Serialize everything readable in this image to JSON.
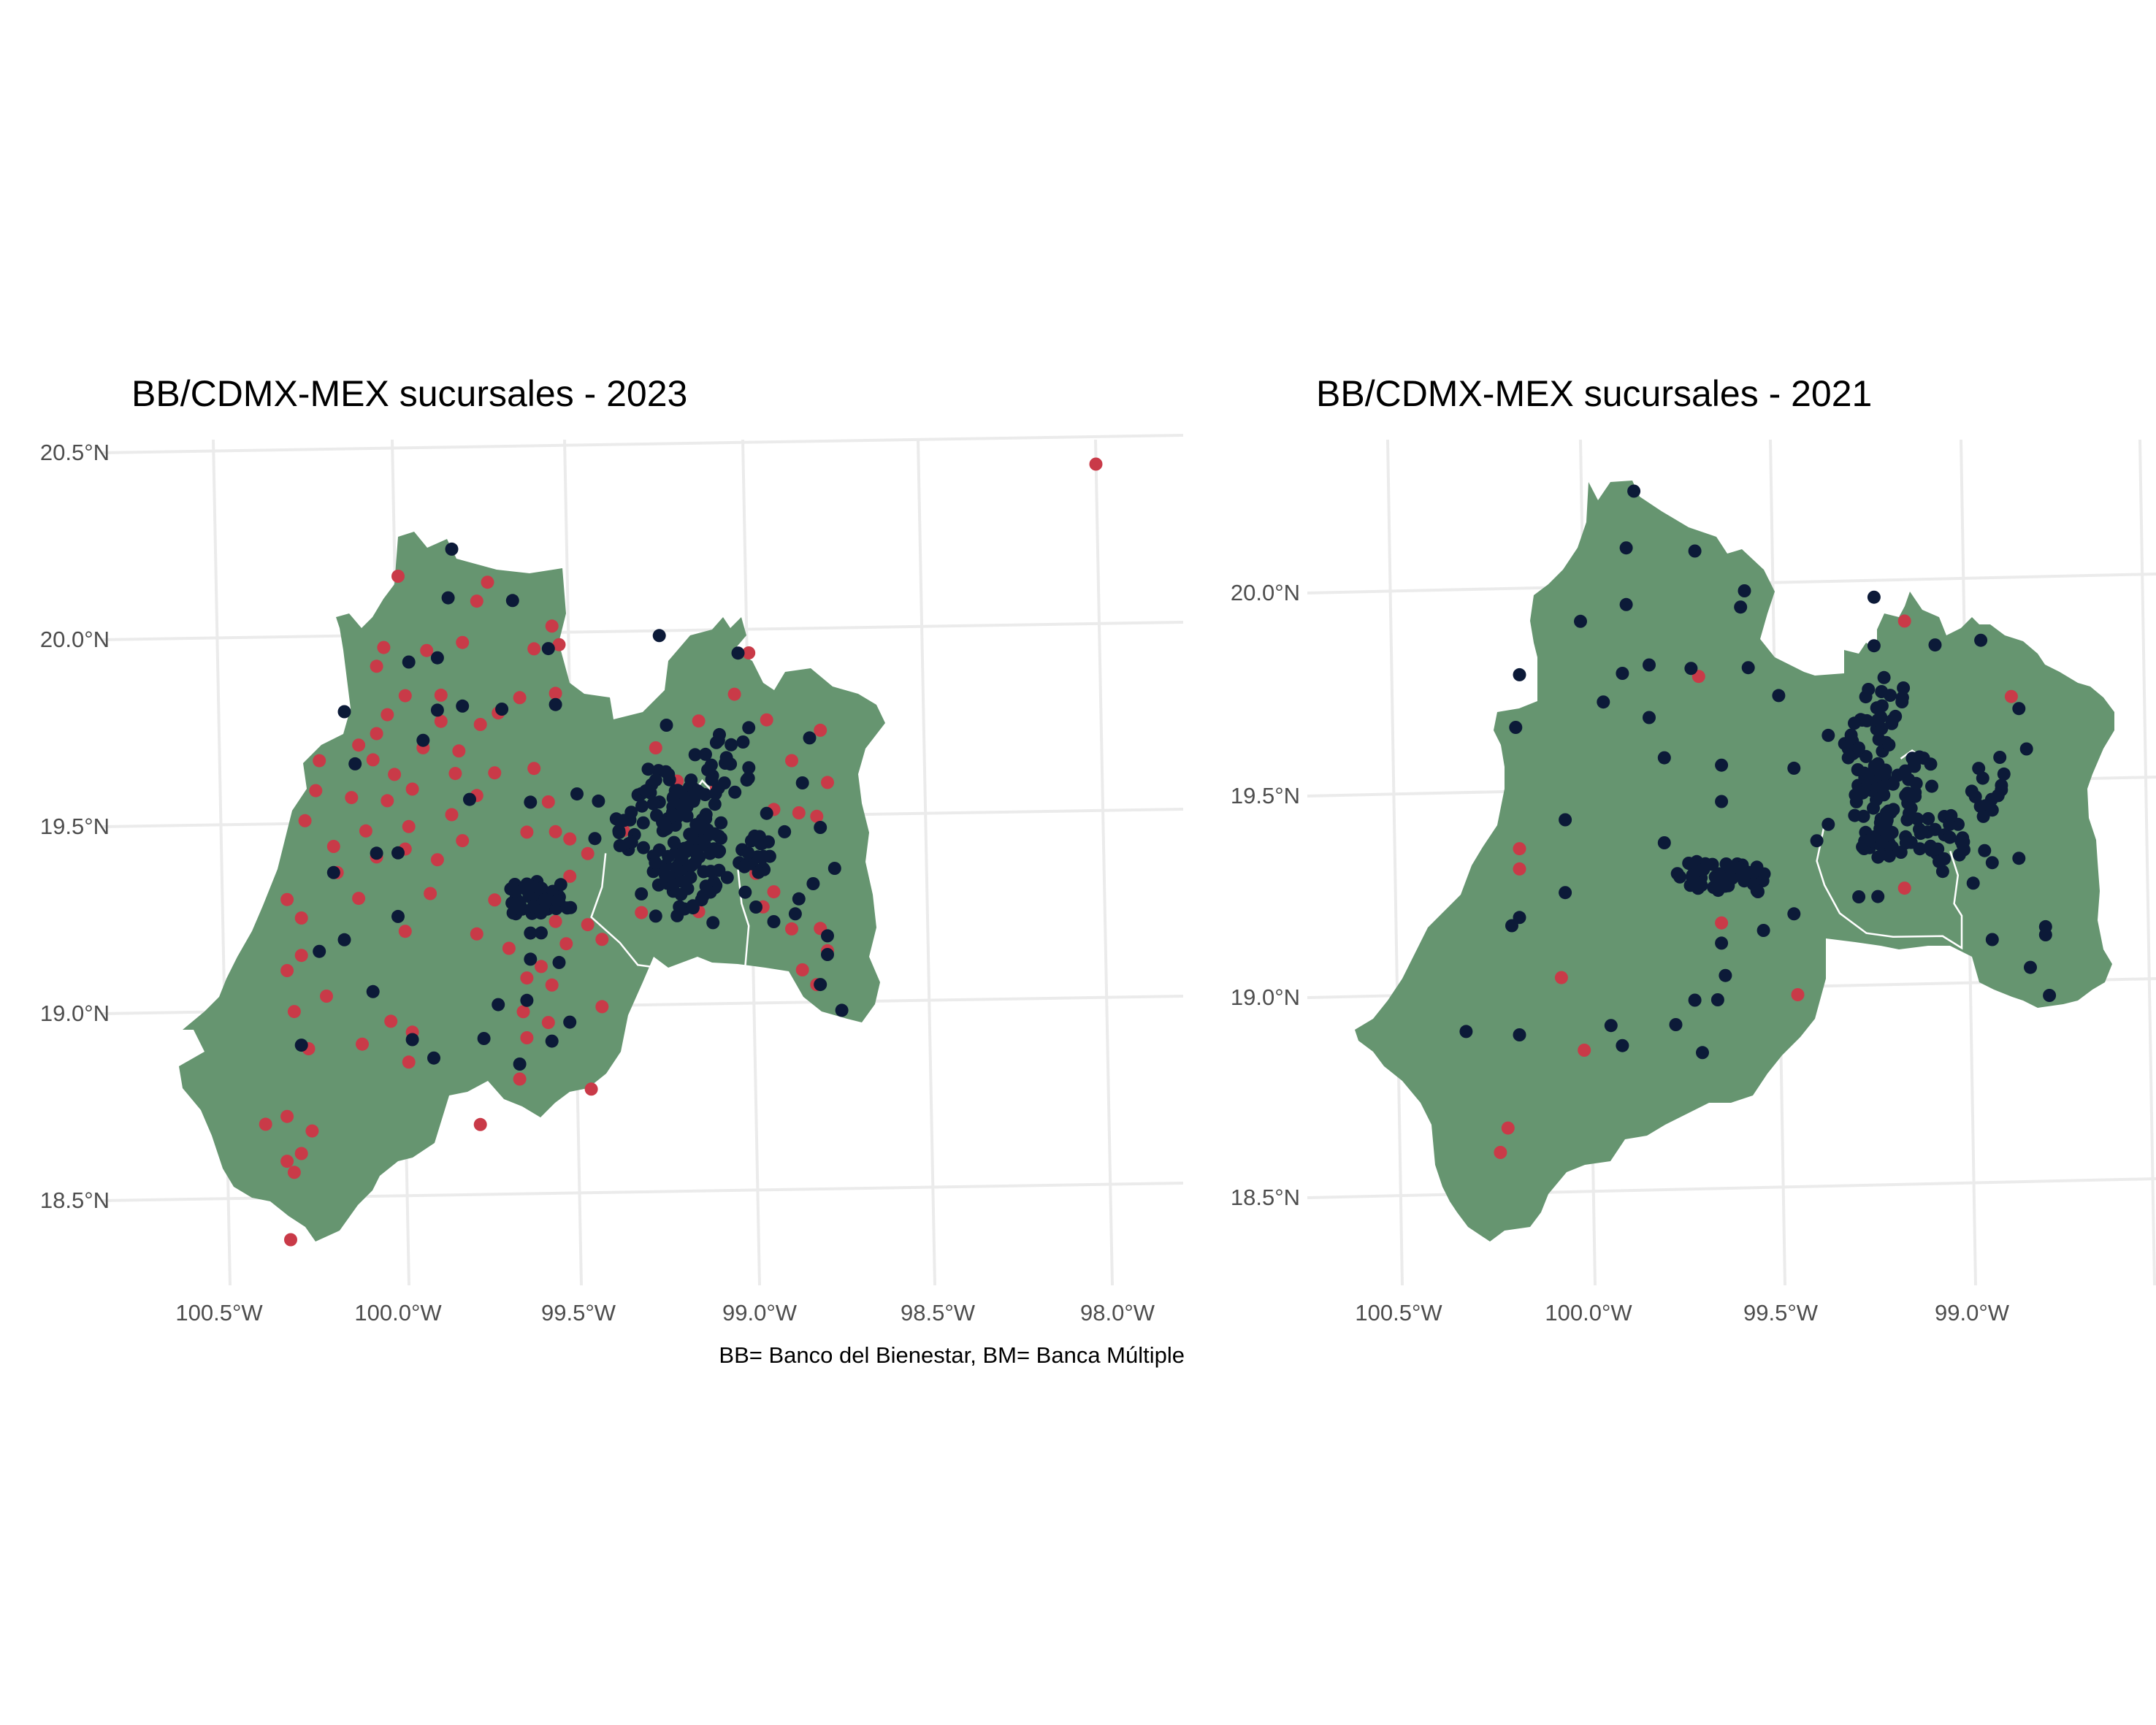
{
  "maps": [
    {
      "title": "BB/CDMX-MEX sucursales - 2023",
      "x_ticks": [
        "100.5°W",
        "100.0°W",
        "99.5°W",
        "99.0°W",
        "98.5°W",
        "98.0°W"
      ],
      "y_ticks": [
        "20.5°N",
        "20.0°N",
        "19.5°N",
        "19.0°N",
        "18.5°N"
      ],
      "caption": "BB= Banco del Bienestar, BM= Banca Múltiple",
      "colors": {
        "land": "#669570",
        "bb": "#c93a48",
        "bm": "#0c1a38",
        "grid": "#ebebeb"
      },
      "bb_points": [
        [
          98.05,
          20.44
        ],
        [
          100.0,
          20.17
        ],
        [
          99.75,
          20.15
        ],
        [
          99.78,
          20.1
        ],
        [
          99.57,
          20.03
        ],
        [
          99.55,
          19.98
        ],
        [
          99.82,
          19.99
        ],
        [
          99.62,
          19.97
        ],
        [
          100.04,
          19.98
        ],
        [
          99.92,
          19.97
        ],
        [
          100.06,
          19.93
        ],
        [
          99.98,
          19.85
        ],
        [
          99.88,
          19.85
        ],
        [
          100.03,
          19.8
        ],
        [
          100.06,
          19.75
        ],
        [
          100.11,
          19.72
        ],
        [
          100.07,
          19.68
        ],
        [
          100.01,
          19.64
        ],
        [
          99.96,
          19.6
        ],
        [
          100.03,
          19.57
        ],
        [
          99.97,
          19.5
        ],
        [
          100.09,
          19.49
        ],
        [
          100.18,
          19.45
        ],
        [
          100.06,
          19.42
        ],
        [
          99.98,
          19.44
        ],
        [
          99.89,
          19.41
        ],
        [
          99.82,
          19.46
        ],
        [
          99.85,
          19.53
        ],
        [
          99.78,
          19.58
        ],
        [
          99.73,
          19.64
        ],
        [
          99.83,
          19.7
        ],
        [
          99.77,
          19.77
        ],
        [
          99.72,
          19.8
        ],
        [
          99.66,
          19.84
        ],
        [
          99.56,
          19.85
        ],
        [
          99.62,
          19.65
        ],
        [
          99.58,
          19.56
        ],
        [
          99.56,
          19.48
        ],
        [
          99.64,
          19.48
        ],
        [
          99.52,
          19.46
        ],
        [
          99.47,
          19.42
        ],
        [
          99.52,
          19.36
        ],
        [
          99.56,
          19.24
        ],
        [
          99.47,
          19.23
        ],
        [
          99.43,
          19.19
        ],
        [
          99.53,
          19.18
        ],
        [
          99.6,
          19.12
        ],
        [
          99.64,
          19.09
        ],
        [
          99.57,
          19.07
        ],
        [
          99.65,
          19.0
        ],
        [
          99.58,
          18.97
        ],
        [
          99.43,
          19.01
        ],
        [
          99.64,
          18.93
        ],
        [
          99.66,
          18.82
        ],
        [
          99.77,
          18.7
        ],
        [
          99.46,
          18.79
        ],
        [
          99.69,
          19.17
        ],
        [
          99.78,
          19.21
        ],
        [
          99.73,
          19.3
        ],
        [
          100.2,
          19.05
        ],
        [
          100.27,
          19.16
        ],
        [
          100.31,
          19.12
        ],
        [
          100.29,
          19.01
        ],
        [
          100.25,
          18.91
        ],
        [
          100.27,
          19.26
        ],
        [
          100.31,
          19.31
        ],
        [
          100.17,
          19.38
        ],
        [
          100.11,
          19.31
        ],
        [
          100.02,
          18.98
        ],
        [
          100.1,
          18.92
        ],
        [
          99.96,
          18.95
        ],
        [
          99.97,
          18.87
        ],
        [
          100.37,
          18.71
        ],
        [
          100.31,
          18.73
        ],
        [
          100.24,
          18.69
        ],
        [
          100.27,
          18.63
        ],
        [
          100.31,
          18.61
        ],
        [
          100.29,
          18.58
        ],
        [
          100.3,
          18.4
        ],
        [
          99.98,
          19.22
        ],
        [
          99.91,
          19.32
        ],
        [
          100.23,
          19.6
        ],
        [
          100.26,
          19.52
        ],
        [
          99.84,
          19.64
        ],
        [
          99.93,
          19.71
        ],
        [
          99.88,
          19.78
        ],
        [
          100.22,
          19.68
        ],
        [
          100.13,
          19.58
        ],
        [
          99.28,
          19.7
        ],
        [
          99.22,
          19.61
        ],
        [
          99.16,
          19.77
        ],
        [
          99.06,
          19.84
        ],
        [
          99.02,
          19.95
        ],
        [
          98.97,
          19.77
        ],
        [
          98.9,
          19.66
        ],
        [
          98.82,
          19.74
        ],
        [
          98.8,
          19.6
        ],
        [
          98.88,
          19.52
        ],
        [
          98.83,
          19.51
        ],
        [
          98.95,
          19.53
        ],
        [
          99.11,
          19.59
        ],
        [
          99.37,
          19.48
        ],
        [
          99.32,
          19.26
        ],
        [
          98.98,
          19.27
        ],
        [
          98.9,
          19.21
        ],
        [
          98.82,
          19.21
        ],
        [
          98.8,
          19.15
        ],
        [
          98.87,
          19.1
        ],
        [
          98.83,
          19.06
        ],
        [
          98.95,
          19.31
        ],
        [
          99.0,
          19.36
        ],
        [
          99.16,
          19.26
        ]
      ],
      "bm_points": [
        [
          99.85,
          20.24
        ],
        [
          99.86,
          20.11
        ],
        [
          99.68,
          20.1
        ],
        [
          99.58,
          19.97
        ],
        [
          99.89,
          19.95
        ],
        [
          99.97,
          19.94
        ],
        [
          100.15,
          19.81
        ],
        [
          99.82,
          19.82
        ],
        [
          99.89,
          19.81
        ],
        [
          99.71,
          19.81
        ],
        [
          99.56,
          19.82
        ],
        [
          99.93,
          19.73
        ],
        [
          100.12,
          19.67
        ],
        [
          99.8,
          19.57
        ],
        [
          99.63,
          19.56
        ],
        [
          99.5,
          19.58
        ],
        [
          100.0,
          19.43
        ],
        [
          100.06,
          19.43
        ],
        [
          100.18,
          19.38
        ],
        [
          100.0,
          19.26
        ],
        [
          100.15,
          19.2
        ],
        [
          100.22,
          19.17
        ],
        [
          100.07,
          19.06
        ],
        [
          100.27,
          18.92
        ],
        [
          99.96,
          18.93
        ],
        [
          99.9,
          18.88
        ],
        [
          99.76,
          18.93
        ],
        [
          99.66,
          18.86
        ],
        [
          99.57,
          18.92
        ],
        [
          99.52,
          18.97
        ],
        [
          99.64,
          19.03
        ],
        [
          99.72,
          19.02
        ],
        [
          99.63,
          19.14
        ],
        [
          99.6,
          19.21
        ],
        [
          99.55,
          19.13
        ],
        [
          99.63,
          19.21
        ],
        [
          99.27,
          20.0
        ],
        [
          99.05,
          19.95
        ],
        [
          99.02,
          19.75
        ],
        [
          98.85,
          19.72
        ],
        [
          98.87,
          19.6
        ],
        [
          98.97,
          19.52
        ],
        [
          98.82,
          19.48
        ],
        [
          98.78,
          19.37
        ],
        [
          98.84,
          19.33
        ],
        [
          98.88,
          19.29
        ],
        [
          98.89,
          19.25
        ],
        [
          98.8,
          19.19
        ],
        [
          98.8,
          19.14
        ],
        [
          98.82,
          19.06
        ],
        [
          98.76,
          18.99
        ],
        [
          99.0,
          19.27
        ],
        [
          98.95,
          19.23
        ],
        [
          99.12,
          19.23
        ],
        [
          99.22,
          19.25
        ],
        [
          99.28,
          19.25
        ],
        [
          99.38,
          19.44
        ],
        [
          99.44,
          19.56
        ],
        [
          99.45,
          19.46
        ],
        [
          99.32,
          19.31
        ],
        [
          99.03,
          19.31
        ],
        [
          99.08,
          19.35
        ],
        [
          98.92,
          19.47
        ],
        [
          99.17,
          19.68
        ],
        [
          99.25,
          19.76
        ]
      ],
      "bm_clusters": [
        [
          99.18,
          19.43,
          0.09,
          0.17,
          70
        ],
        [
          99.25,
          19.57,
          0.08,
          0.1,
          30
        ],
        [
          99.08,
          19.65,
          0.07,
          0.09,
          20
        ],
        [
          99.22,
          19.38,
          0.08,
          0.08,
          22
        ],
        [
          99.0,
          19.42,
          0.06,
          0.06,
          18
        ],
        [
          99.35,
          19.47,
          0.06,
          0.06,
          12
        ],
        [
          99.63,
          19.3,
          0.08,
          0.05,
          40
        ],
        [
          99.56,
          19.3,
          0.05,
          0.05,
          14
        ]
      ],
      "boundary_lines": [
        [
          [
            99.42,
            19.42
          ],
          [
            99.43,
            19.33
          ],
          [
            99.46,
            19.25
          ],
          [
            99.38,
            19.18
          ],
          [
            99.33,
            19.12
          ],
          [
            99.26,
            19.11
          ],
          [
            99.16,
            19.1
          ],
          [
            99.03,
            19.11
          ],
          [
            99.02,
            19.22
          ],
          [
            99.04,
            19.28
          ],
          [
            99.05,
            19.37
          ]
        ],
        [
          [
            99.18,
            19.57
          ],
          [
            99.15,
            19.61
          ],
          [
            99.12,
            19.58
          ]
        ]
      ]
    },
    {
      "title": "BB/CDMX-MEX sucursales - 2021",
      "x_ticks": [
        "100.5°W",
        "100.0°W",
        "99.5°W",
        "99.0°W"
      ],
      "y_ticks": [
        "20.0°N",
        "19.5°N",
        "19.0°N",
        "18.5°N"
      ],
      "colors": {
        "land": "#669570",
        "bb": "#c93a48",
        "bm": "#0c1a38",
        "grid": "#ebebeb"
      },
      "bb_points": [
        [
          99.15,
          19.92
        ],
        [
          99.69,
          19.79
        ],
        [
          98.87,
          19.73
        ],
        [
          100.16,
          19.37
        ],
        [
          100.16,
          19.32
        ],
        [
          99.63,
          19.18
        ],
        [
          100.05,
          19.05
        ],
        [
          99.43,
          19.0
        ],
        [
          99.99,
          18.87
        ],
        [
          100.19,
          18.68
        ],
        [
          100.21,
          18.62
        ],
        [
          99.15,
          19.26
        ]
      ],
      "bm_points": [
        [
          99.86,
          20.25
        ],
        [
          99.88,
          20.11
        ],
        [
          99.7,
          20.1
        ],
        [
          99.57,
          20.0
        ],
        [
          99.88,
          19.97
        ],
        [
          100.0,
          19.93
        ],
        [
          99.58,
          19.96
        ],
        [
          100.16,
          19.8
        ],
        [
          99.82,
          19.82
        ],
        [
          99.89,
          19.8
        ],
        [
          99.71,
          19.81
        ],
        [
          99.56,
          19.81
        ],
        [
          99.48,
          19.74
        ],
        [
          99.94,
          19.73
        ],
        [
          99.82,
          19.69
        ],
        [
          100.17,
          19.67
        ],
        [
          99.78,
          19.59
        ],
        [
          99.63,
          19.57
        ],
        [
          99.44,
          19.56
        ],
        [
          99.63,
          19.48
        ],
        [
          100.04,
          19.44
        ],
        [
          99.78,
          19.38
        ],
        [
          99.38,
          19.38
        ],
        [
          100.16,
          19.2
        ],
        [
          100.04,
          19.26
        ],
        [
          100.18,
          19.18
        ],
        [
          99.63,
          19.13
        ],
        [
          99.52,
          19.16
        ],
        [
          99.44,
          19.2
        ],
        [
          99.62,
          19.05
        ],
        [
          99.7,
          18.99
        ],
        [
          99.64,
          18.99
        ],
        [
          99.75,
          18.93
        ],
        [
          99.68,
          18.86
        ],
        [
          99.92,
          18.93
        ],
        [
          99.89,
          18.88
        ],
        [
          100.16,
          18.91
        ],
        [
          100.3,
          18.92
        ],
        [
          99.29,
          19.64
        ],
        [
          99.35,
          19.64
        ],
        [
          99.23,
          19.98
        ],
        [
          99.23,
          19.86
        ],
        [
          99.07,
          19.86
        ],
        [
          98.95,
          19.87
        ],
        [
          98.85,
          19.7
        ],
        [
          98.9,
          19.58
        ],
        [
          98.83,
          19.6
        ],
        [
          98.92,
          19.45
        ],
        [
          98.94,
          19.35
        ],
        [
          98.97,
          19.27
        ],
        [
          99.05,
          19.3
        ],
        [
          99.22,
          19.24
        ],
        [
          99.27,
          19.24
        ],
        [
          98.85,
          19.33
        ],
        [
          98.92,
          19.32
        ],
        [
          98.78,
          19.16
        ],
        [
          98.78,
          19.14
        ],
        [
          98.82,
          19.06
        ],
        [
          98.77,
          18.99
        ],
        [
          98.92,
          19.13
        ],
        [
          99.35,
          19.42
        ]
      ],
      "bm_clusters": [
        [
          99.2,
          19.45,
          0.09,
          0.12,
          70
        ],
        [
          99.25,
          19.6,
          0.07,
          0.08,
          25
        ],
        [
          99.05,
          19.38,
          0.08,
          0.06,
          25
        ],
        [
          99.12,
          19.53,
          0.05,
          0.06,
          12
        ],
        [
          98.93,
          19.5,
          0.05,
          0.07,
          12
        ],
        [
          99.65,
          19.3,
          0.1,
          0.04,
          40
        ],
        [
          99.56,
          19.29,
          0.05,
          0.04,
          12
        ],
        [
          99.2,
          19.72,
          0.06,
          0.07,
          15
        ]
      ],
      "boundary_lines": [
        [
          [
            99.36,
            19.42
          ],
          [
            99.38,
            19.33
          ],
          [
            99.36,
            19.27
          ],
          [
            99.32,
            19.2
          ],
          [
            99.25,
            19.15
          ],
          [
            99.18,
            19.14
          ],
          [
            99.05,
            19.14
          ],
          [
            99.0,
            19.11
          ],
          [
            99.0,
            19.19
          ],
          [
            99.02,
            19.22
          ],
          [
            99.01,
            19.29
          ],
          [
            99.03,
            19.35
          ]
        ],
        [
          [
            99.16,
            19.58
          ],
          [
            99.13,
            19.6
          ],
          [
            99.1,
            19.58
          ]
        ]
      ]
    }
  ]
}
